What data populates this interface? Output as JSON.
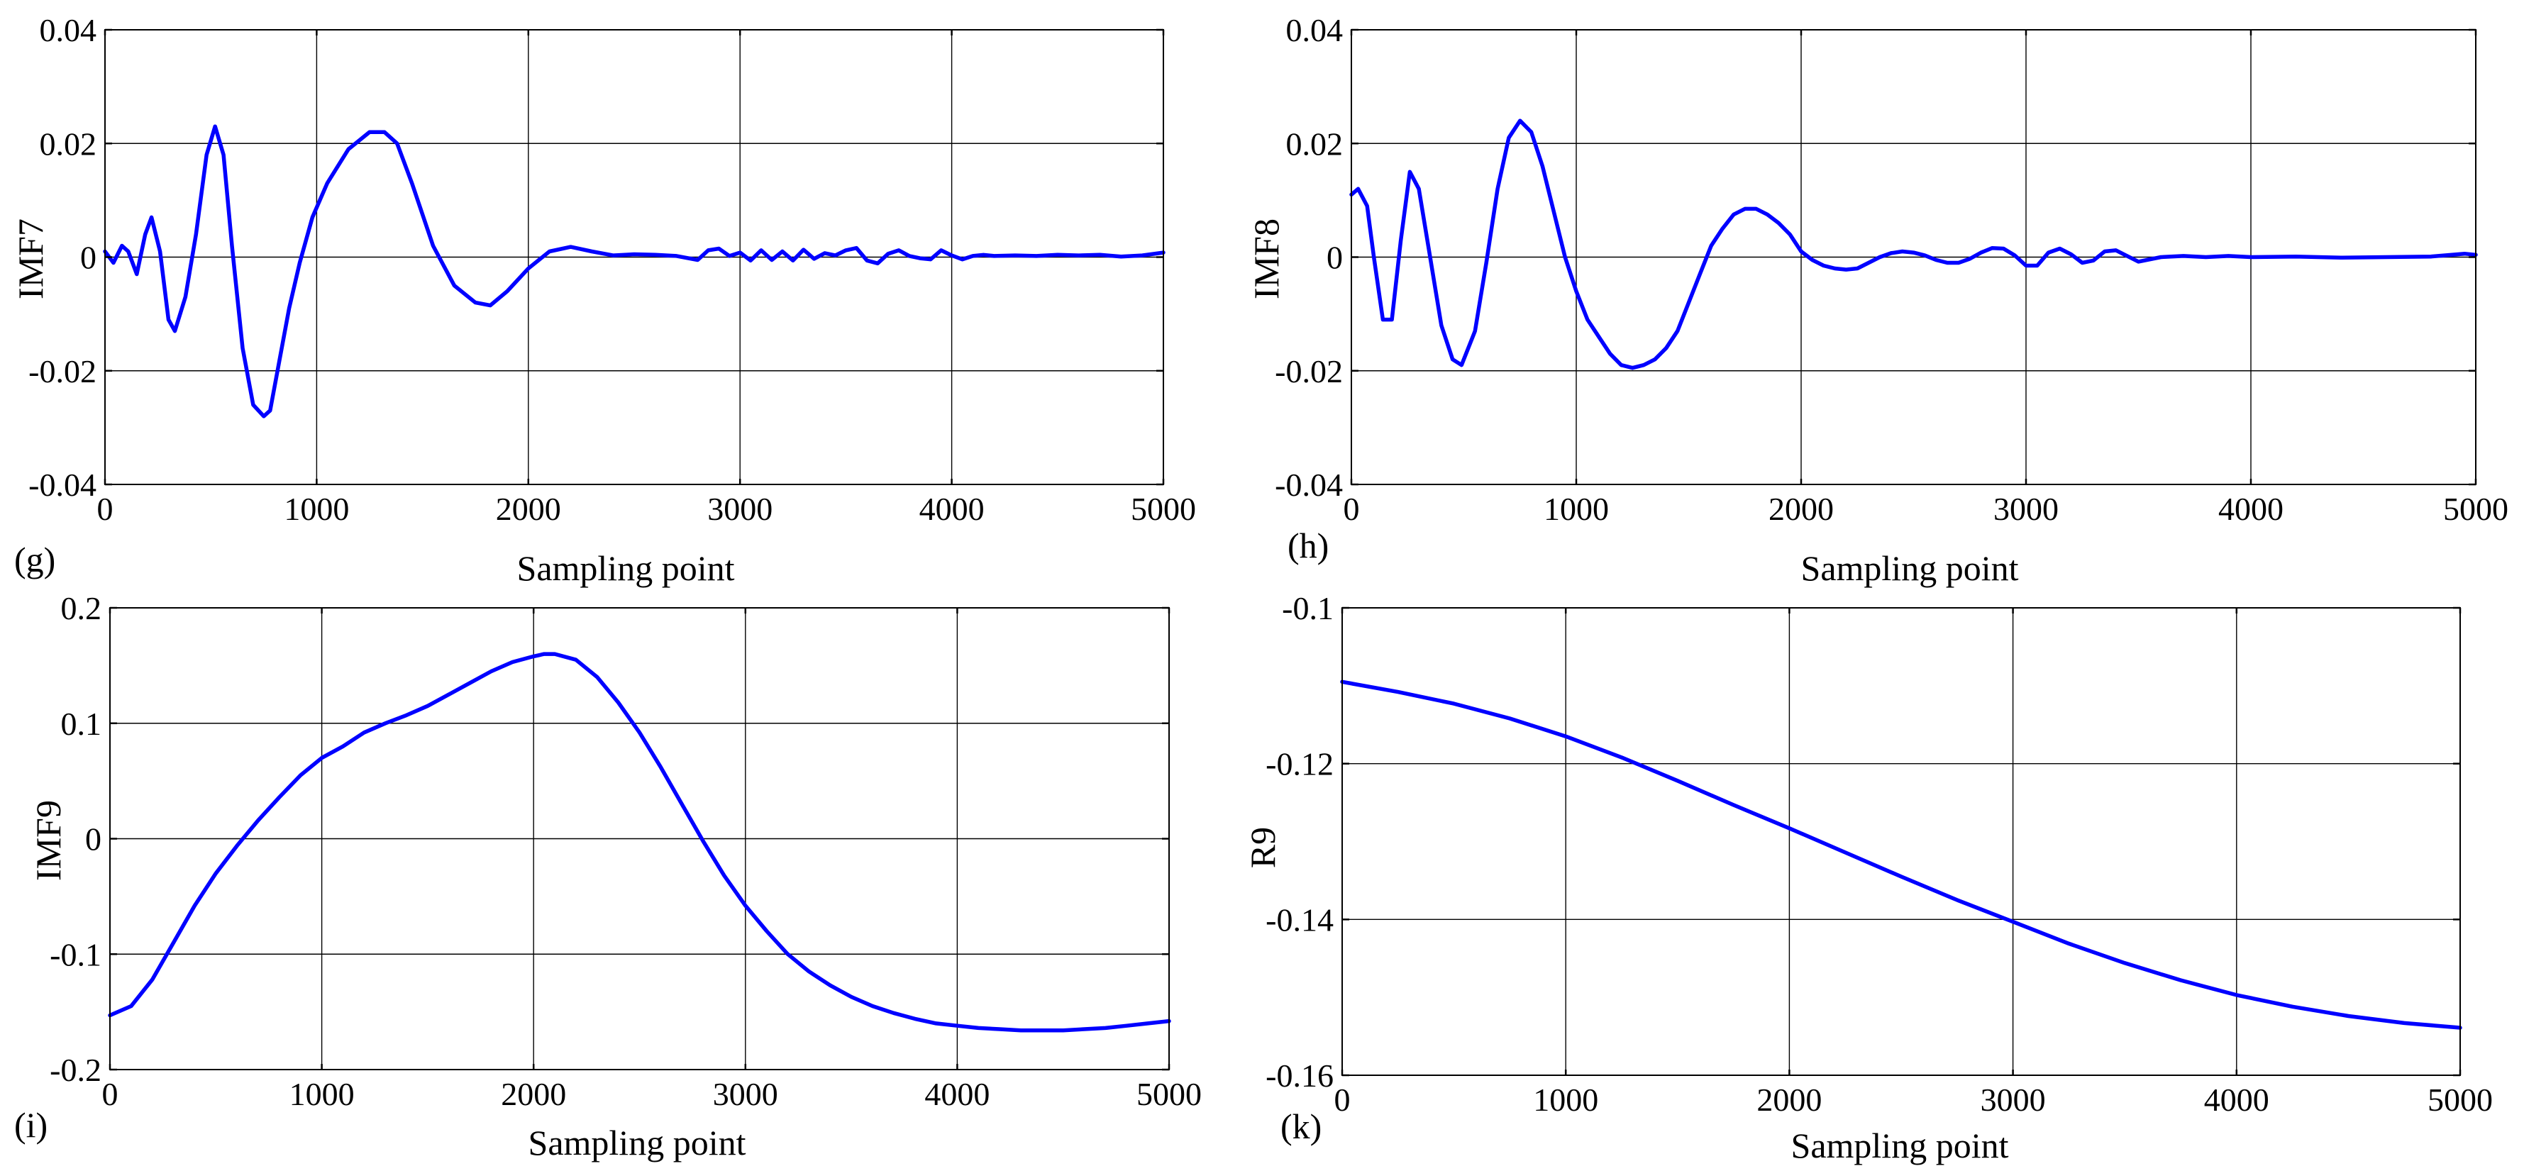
{
  "figure": {
    "description_label": "IMF decomposition panels",
    "panels_count": 4
  },
  "chart_data": [
    {
      "type": "line",
      "panel_label": "(g)",
      "xlabel": "Sampling point",
      "ylabel": "IMF7",
      "xlim": [
        0,
        5000
      ],
      "ylim": [
        -0.04,
        0.04
      ],
      "xticks": [
        0,
        1000,
        2000,
        3000,
        4000,
        5000
      ],
      "yticks": [
        -0.04,
        -0.02,
        0,
        0.02,
        0.04
      ],
      "ytick_labels": [
        "-0.04",
        "-0.02",
        "0",
        "0.02",
        "0.04"
      ],
      "grid": true,
      "series": [
        {
          "name": "IMF7",
          "color": "#0000ff",
          "x": [
            0,
            40,
            80,
            110,
            150,
            190,
            220,
            260,
            300,
            330,
            380,
            430,
            480,
            520,
            560,
            600,
            650,
            700,
            750,
            780,
            820,
            870,
            920,
            980,
            1050,
            1150,
            1250,
            1320,
            1380,
            1450,
            1550,
            1650,
            1750,
            1820,
            1900,
            2000,
            2100,
            2200,
            2300,
            2400,
            2500,
            2600,
            2700,
            2800,
            2850,
            2900,
            2950,
            3000,
            3050,
            3100,
            3150,
            3200,
            3250,
            3300,
            3350,
            3400,
            3450,
            3500,
            3550,
            3600,
            3650,
            3700,
            3750,
            3800,
            3850,
            3900,
            3950,
            4000,
            4050,
            4100,
            4150,
            4200,
            4300,
            4400,
            4500,
            4600,
            4700,
            4800,
            4900,
            5000
          ],
          "y": [
            0.001,
            -0.001,
            0.002,
            0.001,
            -0.003,
            0.004,
            0.007,
            0.001,
            -0.011,
            -0.013,
            -0.007,
            0.004,
            0.018,
            0.023,
            0.018,
            0.002,
            -0.016,
            -0.026,
            -0.028,
            -0.027,
            -0.019,
            -0.009,
            -0.001,
            0.007,
            0.013,
            0.019,
            0.022,
            0.022,
            0.02,
            0.013,
            0.002,
            -0.005,
            -0.008,
            -0.0085,
            -0.006,
            -0.002,
            0.001,
            0.0018,
            0.001,
            0.0003,
            0.0005,
            0.0004,
            0.0002,
            -0.0005,
            0.0012,
            0.0015,
            0.0002,
            0.0008,
            -0.0006,
            0.0012,
            -0.0005,
            0.001,
            -0.0006,
            0.0013,
            -0.0003,
            0.0007,
            0.0003,
            0.0012,
            0.0016,
            -0.0006,
            -0.0011,
            0.0006,
            0.0012,
            0.0002,
            -0.0002,
            -0.0004,
            0.0012,
            0.0003,
            -0.0004,
            0.0002,
            0.0004,
            0.0002,
            0.0003,
            0.0002,
            0.0004,
            0.0003,
            0.0004,
            0.0001,
            0.0003,
            0.0008
          ]
        }
      ]
    },
    {
      "type": "line",
      "panel_label": "(h)",
      "xlabel": "Sampling point",
      "ylabel": "IMF8",
      "xlim": [
        0,
        5000
      ],
      "ylim": [
        -0.04,
        0.04
      ],
      "xticks": [
        0,
        1000,
        2000,
        3000,
        4000,
        5000
      ],
      "yticks": [
        -0.04,
        -0.02,
        0,
        0.02,
        0.04
      ],
      "ytick_labels": [
        "-0.04",
        "-0.02",
        "0",
        "0.02",
        "0.04"
      ],
      "grid": true,
      "series": [
        {
          "name": "IMF8",
          "color": "#0000ff",
          "x": [
            0,
            30,
            70,
            100,
            140,
            180,
            220,
            260,
            300,
            350,
            400,
            450,
            490,
            550,
            600,
            650,
            700,
            750,
            800,
            850,
            900,
            950,
            1000,
            1050,
            1100,
            1150,
            1200,
            1250,
            1300,
            1350,
            1400,
            1450,
            1500,
            1550,
            1600,
            1650,
            1700,
            1750,
            1800,
            1850,
            1900,
            1950,
            2000,
            2050,
            2100,
            2150,
            2200,
            2250,
            2300,
            2350,
            2400,
            2450,
            2500,
            2550,
            2600,
            2650,
            2700,
            2750,
            2800,
            2850,
            2900,
            2950,
            3000,
            3050,
            3100,
            3150,
            3200,
            3250,
            3300,
            3350,
            3400,
            3450,
            3500,
            3600,
            3700,
            3800,
            3900,
            4000,
            4200,
            4400,
            4600,
            4800,
            4950,
            5000
          ],
          "y": [
            0.011,
            0.012,
            0.009,
            0.0,
            -0.011,
            -0.011,
            0.003,
            0.015,
            0.012,
            0.0,
            -0.012,
            -0.018,
            -0.019,
            -0.013,
            -0.001,
            0.012,
            0.021,
            0.024,
            0.022,
            0.016,
            0.008,
            0.0,
            -0.006,
            -0.011,
            -0.014,
            -0.017,
            -0.019,
            -0.0195,
            -0.019,
            -0.018,
            -0.016,
            -0.013,
            -0.008,
            -0.003,
            0.002,
            0.005,
            0.0075,
            0.0085,
            0.0085,
            0.0075,
            0.006,
            0.004,
            0.001,
            -0.0005,
            -0.0015,
            -0.002,
            -0.0022,
            -0.002,
            -0.001,
            0.0,
            0.0007,
            0.001,
            0.0008,
            0.0003,
            -0.0005,
            -0.001,
            -0.001,
            -0.0003,
            0.0008,
            0.0016,
            0.0015,
            0.0003,
            -0.0015,
            -0.0015,
            0.0008,
            0.0015,
            0.0005,
            -0.001,
            -0.0006,
            0.001,
            0.0012,
            0.0002,
            -0.0008,
            0.0,
            0.0002,
            0.0,
            0.0002,
            0.0,
            0.0001,
            -0.0001,
            0.0,
            0.0001,
            0.0006,
            0.0004
          ]
        }
      ]
    },
    {
      "type": "line",
      "panel_label": "(i)",
      "xlabel": "Sampling point",
      "ylabel": "IMF9",
      "xlim": [
        0,
        5000
      ],
      "ylim": [
        -0.2,
        0.2
      ],
      "xticks": [
        0,
        1000,
        2000,
        3000,
        4000,
        5000
      ],
      "yticks": [
        -0.2,
        -0.1,
        0,
        0.1,
        0.2
      ],
      "ytick_labels": [
        "-0.2",
        "-0.1",
        "0",
        "0.1",
        "0.2"
      ],
      "grid": true,
      "series": [
        {
          "name": "IMF9",
          "color": "#0000ff",
          "x": [
            0,
            100,
            200,
            300,
            400,
            500,
            600,
            700,
            800,
            900,
            1000,
            1100,
            1200,
            1300,
            1400,
            1500,
            1600,
            1700,
            1800,
            1900,
            2000,
            2050,
            2100,
            2200,
            2300,
            2400,
            2500,
            2600,
            2700,
            2800,
            2900,
            3000,
            3100,
            3200,
            3300,
            3400,
            3500,
            3600,
            3700,
            3800,
            3900,
            4000,
            4100,
            4200,
            4300,
            4400,
            4500,
            4600,
            4700,
            4800,
            4900,
            5000
          ],
          "y": [
            -0.153,
            -0.145,
            -0.122,
            -0.09,
            -0.058,
            -0.03,
            -0.006,
            0.016,
            0.036,
            0.055,
            0.07,
            0.08,
            0.092,
            0.1,
            0.107,
            0.115,
            0.125,
            0.135,
            0.145,
            0.153,
            0.158,
            0.16,
            0.16,
            0.155,
            0.14,
            0.118,
            0.092,
            0.062,
            0.03,
            -0.002,
            -0.032,
            -0.058,
            -0.08,
            -0.1,
            -0.115,
            -0.127,
            -0.137,
            -0.145,
            -0.151,
            -0.156,
            -0.16,
            -0.162,
            -0.164,
            -0.165,
            -0.166,
            -0.166,
            -0.166,
            -0.165,
            -0.164,
            -0.162,
            -0.16,
            -0.158
          ]
        }
      ]
    },
    {
      "type": "line",
      "panel_label": "(k)",
      "xlabel": "Sampling point",
      "ylabel": "R9",
      "xlim": [
        0,
        5000
      ],
      "ylim": [
        -0.16,
        -0.1
      ],
      "xticks": [
        0,
        1000,
        2000,
        3000,
        4000,
        5000
      ],
      "yticks": [
        -0.16,
        -0.14,
        -0.12,
        -0.1
      ],
      "ytick_labels": [
        "-0.16",
        "-0.14",
        "-0.12",
        "-0.1"
      ],
      "grid": true,
      "series": [
        {
          "name": "R9",
          "color": "#0000ff",
          "x": [
            0,
            250,
            500,
            750,
            1000,
            1250,
            1500,
            1750,
            2000,
            2250,
            2500,
            2750,
            3000,
            3250,
            3500,
            3750,
            4000,
            4250,
            4500,
            4750,
            5000
          ],
          "y": [
            -0.1095,
            -0.1108,
            -0.1123,
            -0.1142,
            -0.1165,
            -0.1192,
            -0.1222,
            -0.1253,
            -0.1283,
            -0.1314,
            -0.1345,
            -0.1375,
            -0.1403,
            -0.1431,
            -0.1456,
            -0.1478,
            -0.1497,
            -0.1512,
            -0.1524,
            -0.1533,
            -0.1539
          ]
        }
      ]
    }
  ]
}
